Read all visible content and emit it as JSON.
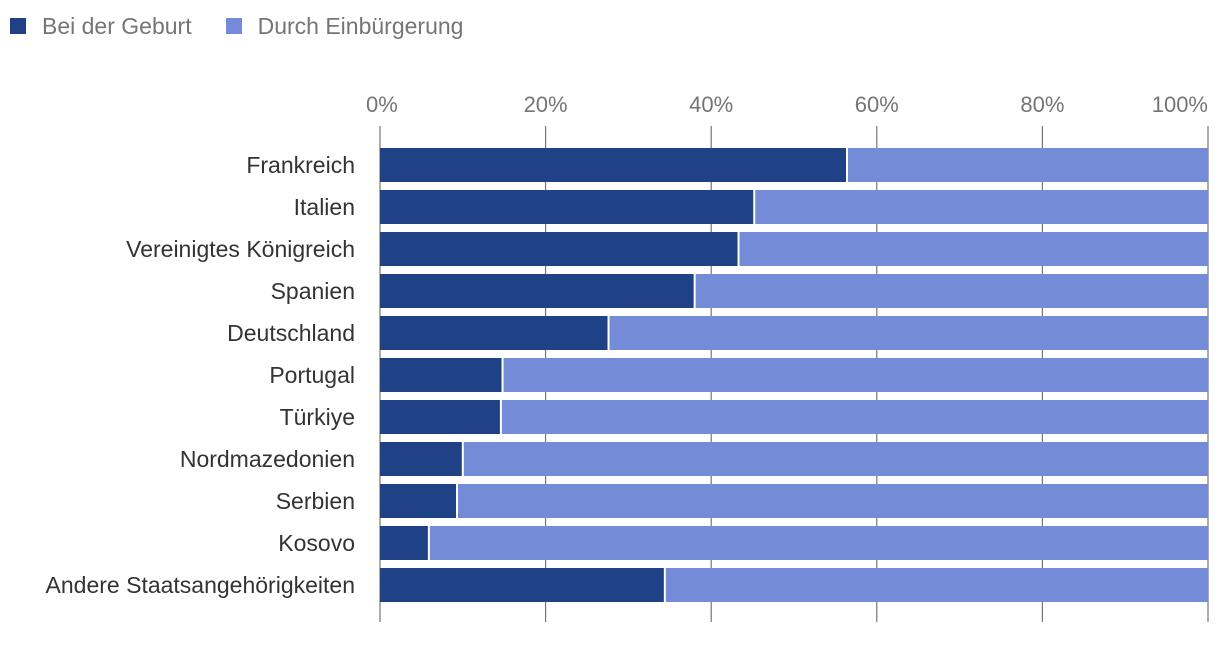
{
  "colors": {
    "birth": "#1f4186",
    "naturalization": "#748cd8",
    "grid": "#757575"
  },
  "legend": [
    {
      "label": "Bei der Geburt",
      "color": "#1f4186"
    },
    {
      "label": "Durch Einbürgerung",
      "color": "#748cd8"
    }
  ],
  "chart_data": {
    "type": "bar",
    "orientation": "horizontal",
    "stacked": true,
    "title": "",
    "xlabel": "",
    "ylabel": "",
    "xlim": [
      0,
      100
    ],
    "x_ticks": [
      "0%",
      "20%",
      "40%",
      "60%",
      "80%",
      "100%"
    ],
    "categories": [
      "Frankreich",
      "Italien",
      "Vereinigtes Königreich",
      "Spanien",
      "Deutschland",
      "Portugal",
      "Türkiye",
      "Nordmazedonien",
      "Serbien",
      "Kosovo",
      "Andere Staatsangehörigkeiten"
    ],
    "series": [
      {
        "name": "Bei der Geburt",
        "values": [
          56.4,
          45.2,
          43.3,
          38.0,
          27.6,
          14.8,
          14.6,
          10.0,
          9.3,
          5.9,
          34.4
        ]
      },
      {
        "name": "Durch Einbürgerung",
        "values": [
          43.6,
          54.8,
          56.7,
          62.0,
          72.4,
          85.2,
          85.4,
          90.0,
          90.7,
          94.1,
          65.6
        ]
      }
    ],
    "legend_position": "top-left",
    "grid": true
  }
}
